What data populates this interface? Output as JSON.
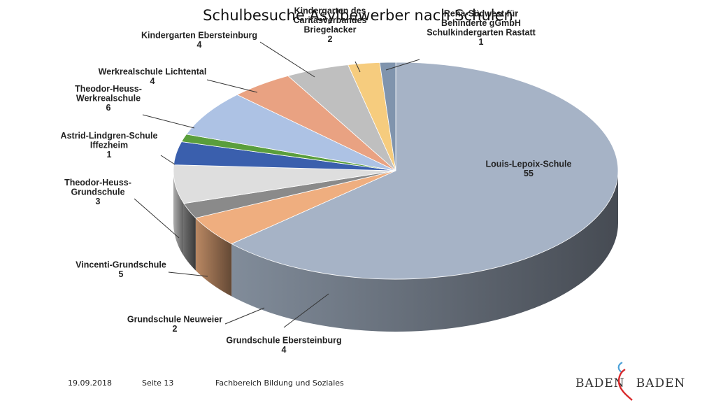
{
  "chart_data": {
    "type": "pie",
    "title": "Schulbesuche Asylbewerber nach Schulen",
    "slices": [
      {
        "label": [
          "Louis-Lepoix-Schule"
        ],
        "value": 55,
        "color": "#a6b3c6"
      },
      {
        "label": [
          "Grundschule Ebersteinburg"
        ],
        "value": 4,
        "color": "#efae7f"
      },
      {
        "label": [
          "Grundschule Neuweier"
        ],
        "value": 2,
        "color": "#8a8a8a"
      },
      {
        "label": [
          "Vincenti-Grundschule"
        ],
        "value": 5,
        "color": "#dedede"
      },
      {
        "label": [
          "Theodor-Heuss-",
          "Grundschule"
        ],
        "value": 3,
        "color": "#3a5fad"
      },
      {
        "label": [
          "Astrid-Lindgren-Schule",
          "Iffezheim"
        ],
        "value": 1,
        "color": "#5a9e3c"
      },
      {
        "label": [
          "Theodor-Heuss-",
          "Werkrealschule"
        ],
        "value": 6,
        "color": "#adc2e4"
      },
      {
        "label": [
          "Werkrealschule Lichtental"
        ],
        "value": 4,
        "color": "#e9a282"
      },
      {
        "label": [
          "Kindergarten Ebersteinburg"
        ],
        "value": 4,
        "color": "#bfbfbf"
      },
      {
        "label": [
          "Kindergarten des",
          "Caritasverbandes",
          "Briegelacker"
        ],
        "value": 2,
        "color": "#f6cc7e"
      },
      {
        "label": [
          "Reha-Südwest für",
          "Behinderte gGmbH",
          "Schulkindergarten Rastatt"
        ],
        "value": 1,
        "color": "#8094ad"
      }
    ],
    "legend": "none",
    "data_labels": "outside with leader lines"
  },
  "footer": {
    "date": "19.09.2018",
    "page": "Seite 13",
    "department": "Fachbereich Bildung und Soziales"
  },
  "logo": {
    "text_left": "BADEN",
    "text_right": "BADEN"
  }
}
